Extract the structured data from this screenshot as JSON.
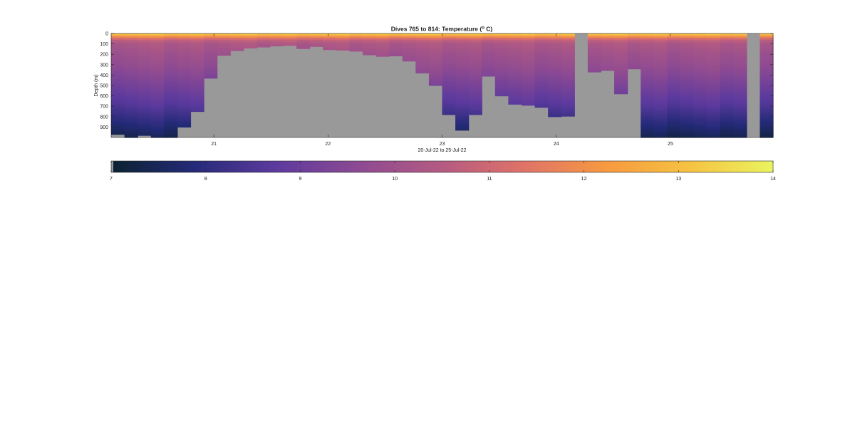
{
  "chart_data": [
    {
      "type": "heatmap",
      "title_main": "Dives 765 to 814: Temperature (",
      "title_sup": "o",
      "title_end": " C)",
      "ylabel": "Depth (m)",
      "xlabel": "20-Jul-22 to 25-Jul-22",
      "y_axis": {
        "reversed": true,
        "ylim": [
          0,
          1000
        ],
        "ticks": [
          0,
          100,
          200,
          300,
          400,
          500,
          600,
          700,
          800,
          900
        ]
      },
      "x_axis": {
        "xlim": [
          20.1,
          25.9
        ],
        "ticks": [
          21,
          22,
          23,
          24,
          25
        ],
        "tick_labels": [
          "21",
          "22",
          "23",
          "24",
          "25"
        ]
      },
      "no_data_color": "#999999",
      "profiles": {
        "count": 50,
        "max_depth_m": [
          970,
          1000,
          980,
          1000,
          1000,
          900,
          750,
          430,
          210,
          165,
          140,
          130,
          120,
          115,
          145,
          125,
          155,
          160,
          170,
          205,
          220,
          215,
          265,
          380,
          500,
          780,
          930,
          780,
          410,
          600,
          680,
          690,
          710,
          800,
          795,
          0,
          370,
          355,
          580,
          340,
          1000,
          1000,
          1000,
          1000,
          1000,
          1000,
          1000,
          1000,
          0,
          1000
        ],
        "temperature_profile": {
          "depth_m": [
            0,
            10,
            30,
            60,
            100,
            200,
            300,
            400,
            500,
            600,
            700,
            800,
            900,
            1000
          ],
          "temp_c": [
            13.9,
            13.0,
            12.0,
            10.8,
            10.3,
            10.0,
            9.8,
            9.5,
            9.2,
            8.9,
            8.6,
            8.2,
            7.8,
            7.4
          ]
        }
      }
    },
    {
      "type": "colorbar",
      "clim": [
        7,
        14
      ],
      "ticks": [
        7,
        8,
        9,
        10,
        11,
        12,
        13,
        14
      ],
      "tick_labels": [
        "7",
        "8",
        "9",
        "10",
        "11",
        "12",
        "13",
        "14"
      ],
      "colormap": [
        "#0b2230",
        "#242a78",
        "#5d3a9e",
        "#8d4a92",
        "#b55b82",
        "#e07368",
        "#f79a40",
        "#f6c342",
        "#eaf45e"
      ]
    }
  ]
}
